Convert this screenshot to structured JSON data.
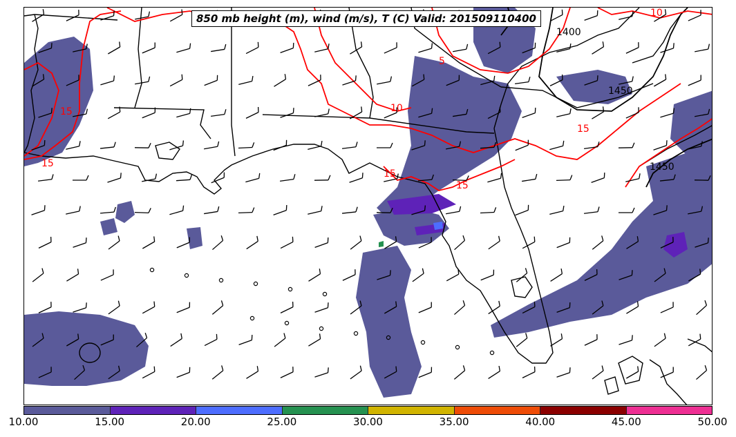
{
  "map": {
    "title": "850 mb height (m), wind (m/s), T (C) Valid: 201509110400",
    "contour_labels": {
      "temperature": [
        "15",
        "15",
        "15",
        "15",
        "10",
        "5",
        "10",
        "15"
      ],
      "height": [
        "1400",
        "1450",
        "1450"
      ]
    },
    "colors": {
      "temperature_contour": "#ff0000",
      "height_contour": "#000000",
      "boundaries": "#000000",
      "wind_barb": "#000000"
    }
  },
  "colorbar": {
    "ticks": [
      "10.00",
      "15.00",
      "20.00",
      "25.00",
      "30.00",
      "35.00",
      "40.00",
      "45.00",
      "50.00"
    ],
    "colors": [
      "#5a5a9a",
      "#5e22b8",
      "#4d6dff",
      "#259150",
      "#d1b400",
      "#ee4c07",
      "#8b0000",
      "#ee2f93"
    ]
  }
}
